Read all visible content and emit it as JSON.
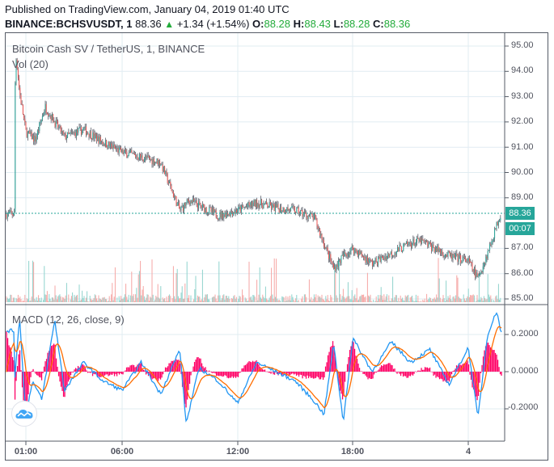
{
  "header": {
    "published": "Published on TradingView.com, January 04, 2019 01:40 UTC",
    "symbol": "BINANCE:BCHSVUSDT, 1",
    "last": "88.36",
    "change_arrow": "▲",
    "change": "+1.34 (+1.54%)",
    "o_label": "O:",
    "o_value": "88.28",
    "h_label": "H:",
    "h_value": "88.43",
    "l_label": "L:",
    "l_value": "88.28",
    "c_label": "C:",
    "c_value": "88.36"
  },
  "price_pane": {
    "title": "Bitcoin Cash SV / TetherUS, 1, BINANCE",
    "volume_label": "Vol (20)",
    "last_price_tag": "88.36",
    "countdown_tag": "00:07"
  },
  "macd_pane": {
    "title": "MACD (12, 26, close, 9)"
  },
  "logo": {
    "icon": "tradingview-cloud-icon"
  },
  "colors": {
    "up": "#26a69a",
    "down": "#ef5350",
    "wick": "#5d606b",
    "macd_line": "#2196f3",
    "signal_line": "#ff6d00",
    "histogram": "#ff0066",
    "grid": "#e1ecf2",
    "last_price_line": "#26a69a",
    "header_value_green": "#22ab3a"
  },
  "chart_data": [
    {
      "type": "candlestick",
      "title": "Bitcoin Cash SV / TetherUS, 1, BINANCE",
      "xlabel": "",
      "ylabel": "",
      "x_ticks": [
        "01:00",
        "06:00",
        "12:00",
        "18:00",
        "4"
      ],
      "y_ticks": [
        "95.00",
        "94.00",
        "93.00",
        "92.00",
        "91.00",
        "90.00",
        "89.00",
        "87.00",
        "86.00",
        "85.00"
      ],
      "ylim": [
        84.8,
        95.2
      ],
      "grid": true,
      "last_price": 88.36,
      "approx_close_path": {
        "x": [
          "00:25",
          "00:30",
          "00:40",
          "01:00",
          "01:30",
          "02:00",
          "03:00",
          "04:00",
          "05:00",
          "06:00",
          "07:00",
          "08:00",
          "09:00",
          "09:30",
          "10:00",
          "11:00",
          "12:00",
          "13:00",
          "14:00",
          "15:00",
          "16:00",
          "16:30",
          "17:00",
          "17:30",
          "18:00",
          "19:00",
          "20:00",
          "21:00",
          "21:30",
          "22:00",
          "23:00",
          "00:00",
          "00:30",
          "01:00",
          "01:40"
        ],
        "close": [
          93.0,
          94.6,
          93.2,
          91.6,
          91.3,
          92.6,
          91.4,
          91.7,
          91.2,
          90.8,
          90.6,
          90.4,
          88.5,
          88.9,
          88.7,
          88.3,
          88.5,
          88.8,
          88.6,
          88.5,
          88.2,
          87.2,
          86.2,
          86.7,
          87.0,
          86.4,
          86.8,
          87.2,
          87.3,
          87.1,
          86.7,
          86.5,
          85.8,
          86.8,
          88.36
        ]
      },
      "volume": {
        "label": "Vol (20)",
        "up_color": "#26a69a",
        "down_color": "#ef5350"
      }
    },
    {
      "type": "line",
      "title": "MACD (12, 26, close, 9)",
      "series": [
        {
          "name": "MACD",
          "color": "#2196f3"
        },
        {
          "name": "Signal",
          "color": "#ff6d00"
        },
        {
          "name": "Histogram",
          "color": "#ff0066",
          "type": "bar"
        }
      ],
      "y_ticks": [
        "0.2000",
        "0.0000",
        "-0.2000"
      ],
      "ylim": [
        -0.32,
        0.34
      ],
      "approx_macd": {
        "x": [
          "00:25",
          "00:40",
          "01:00",
          "01:20",
          "01:50",
          "02:30",
          "03:00",
          "04:00",
          "05:00",
          "06:00",
          "07:00",
          "08:00",
          "09:00",
          "09:20",
          "10:00",
          "11:00",
          "12:00",
          "13:00",
          "14:00",
          "15:00",
          "16:00",
          "16:30",
          "17:00",
          "17:30",
          "18:00",
          "19:00",
          "20:00",
          "21:00",
          "22:00",
          "23:00",
          "00:00",
          "00:30",
          "01:00",
          "01:30",
          "01:40"
        ],
        "values": [
          -0.05,
          0.3,
          -0.24,
          -0.05,
          -0.15,
          0.28,
          -0.1,
          0.05,
          -0.05,
          -0.1,
          0.05,
          -0.12,
          0.12,
          -0.28,
          0.02,
          -0.05,
          -0.17,
          0.05,
          0.0,
          -0.05,
          -0.16,
          -0.23,
          0.15,
          -0.27,
          0.18,
          0.0,
          0.16,
          0.05,
          0.12,
          -0.07,
          0.13,
          -0.25,
          0.2,
          0.33,
          0.22
        ]
      }
    }
  ]
}
